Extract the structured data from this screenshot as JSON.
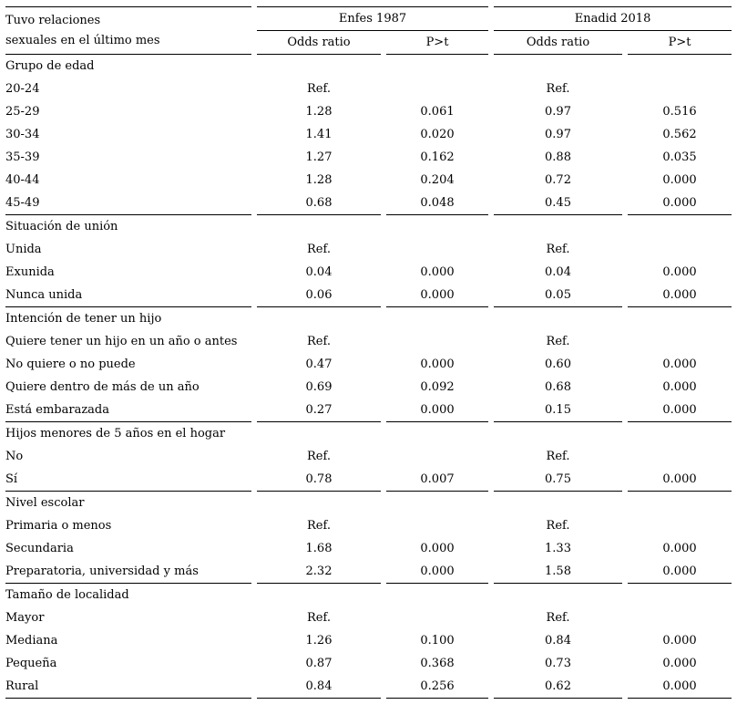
{
  "table": {
    "header": {
      "label_line1": "Tuvo relaciones",
      "label_line2": "sexuales en el último mes",
      "groups": [
        {
          "label": "Enfes 1987"
        },
        {
          "label": "Enadid 2018"
        }
      ],
      "subheaders": [
        "Odds ratio",
        "P>t",
        "Odds ratio",
        "P>t"
      ]
    },
    "chart_data": {
      "type": "table",
      "title": "Tuvo relaciones sexuales en el último mes",
      "columns": [
        "Enfes 1987 Odds ratio",
        "Enfes 1987 P>t",
        "Enadid 2018 Odds ratio",
        "Enadid 2018 P>t"
      ]
    },
    "sections": [
      {
        "title": "Grupo de edad",
        "rows": [
          {
            "label": "20-24",
            "values": [
              "Ref.",
              "",
              "Ref.",
              ""
            ]
          },
          {
            "label": "25-29",
            "values": [
              "1.28",
              "0.061",
              "0.97",
              "0.516"
            ]
          },
          {
            "label": "30-34",
            "values": [
              "1.41",
              "0.020",
              "0.97",
              "0.562"
            ]
          },
          {
            "label": "35-39",
            "values": [
              "1.27",
              "0.162",
              "0.88",
              "0.035"
            ]
          },
          {
            "label": "40-44",
            "values": [
              "1.28",
              "0.204",
              "0.72",
              "0.000"
            ]
          },
          {
            "label": "45-49",
            "values": [
              "0.68",
              "0.048",
              "0.45",
              "0.000"
            ]
          }
        ]
      },
      {
        "title": "Situación de unión",
        "rows": [
          {
            "label": "Unida",
            "values": [
              "Ref.",
              "",
              "Ref.",
              ""
            ]
          },
          {
            "label": "Exunida",
            "values": [
              "0.04",
              "0.000",
              "0.04",
              "0.000"
            ]
          },
          {
            "label": "Nunca unida",
            "values": [
              "0.06",
              "0.000",
              "0.05",
              "0.000"
            ]
          }
        ]
      },
      {
        "title": "Intención de tener un hijo",
        "rows": [
          {
            "label": "Quiere tener un hijo en un año o antes",
            "values": [
              "Ref.",
              "",
              "Ref.",
              ""
            ]
          },
          {
            "label": "No quiere o no puede",
            "values": [
              "0.47",
              "0.000",
              "0.60",
              "0.000"
            ]
          },
          {
            "label": "Quiere dentro de más de un año",
            "values": [
              "0.69",
              "0.092",
              "0.68",
              "0.000"
            ]
          },
          {
            "label": "Está embarazada",
            "values": [
              "0.27",
              "0.000",
              "0.15",
              "0.000"
            ]
          }
        ]
      },
      {
        "title": "Hijos menores de 5 años en el hogar",
        "rows": [
          {
            "label": "No",
            "values": [
              "Ref.",
              "",
              "Ref.",
              ""
            ]
          },
          {
            "label": "Sí",
            "values": [
              "0.78",
              "0.007",
              "0.75",
              "0.000"
            ]
          }
        ]
      },
      {
        "title": "Nivel escolar",
        "rows": [
          {
            "label": "Primaria o menos",
            "values": [
              "Ref.",
              "",
              "Ref.",
              ""
            ]
          },
          {
            "label": "Secundaria",
            "values": [
              "1.68",
              "0.000",
              "1.33",
              "0.000"
            ]
          },
          {
            "label": "Preparatoria, universidad y más",
            "values": [
              "2.32",
              "0.000",
              "1.58",
              "0.000"
            ]
          }
        ]
      },
      {
        "title": "Tamaño de localidad",
        "rows": [
          {
            "label": "Mayor",
            "values": [
              "Ref.",
              "",
              "Ref.",
              ""
            ]
          },
          {
            "label": "Mediana",
            "values": [
              "1.26",
              "0.100",
              "0.84",
              "0.000"
            ]
          },
          {
            "label": "Pequeña",
            "values": [
              "0.87",
              "0.368",
              "0.73",
              "0.000"
            ]
          },
          {
            "label": "Rural",
            "values": [
              "0.84",
              "0.256",
              "0.62",
              "0.000"
            ]
          }
        ]
      }
    ]
  }
}
